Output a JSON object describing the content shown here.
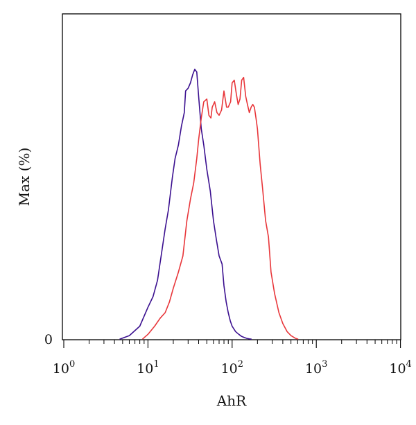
{
  "chart_data": {
    "type": "line",
    "xlabel": "AhR",
    "ylabel": "Max (%)",
    "x_scale": "log",
    "xlim": [
      1,
      30000
    ],
    "ylim": [
      0,
      100
    ],
    "x_ticks": [
      {
        "value": 1,
        "base": "10",
        "exp": "0"
      },
      {
        "value": 10,
        "base": "10",
        "exp": "1"
      },
      {
        "value": 100,
        "base": "10",
        "exp": "2"
      },
      {
        "value": 1000,
        "base": "10",
        "exp": "3"
      },
      {
        "value": 10000,
        "base": "10",
        "exp": "4"
      }
    ],
    "y_ticks": [
      {
        "value": 0,
        "label": "0"
      }
    ],
    "grid": false,
    "series": [
      {
        "color": "#3a0f8f",
        "x": [
          4.6,
          6,
          8,
          10,
          11.5,
          13,
          14.5,
          16,
          17.5,
          19.5,
          21,
          23,
          25,
          27,
          28,
          30,
          32,
          34,
          36,
          38,
          40,
          43,
          46,
          50,
          55,
          60,
          65,
          70,
          76,
          80,
          85,
          90,
          95,
          100,
          110,
          120,
          130,
          140,
          150,
          160,
          170
        ],
        "y": [
          0.2,
          1.5,
          5,
          12,
          16,
          22,
          32,
          41,
          48,
          60,
          67,
          72,
          79,
          84,
          92,
          93,
          95,
          98,
          100,
          99,
          90,
          78,
          72,
          63,
          55,
          44,
          37,
          31,
          28,
          20,
          14,
          10,
          7,
          5,
          3,
          2,
          1.2,
          0.8,
          0.5,
          0.3,
          0.2
        ]
      },
      {
        "color": "#e8363a",
        "x": [
          8.6,
          10,
          12,
          14,
          16,
          18,
          20,
          23,
          26,
          29,
          32,
          35,
          38,
          40,
          43,
          46,
          50,
          53,
          56,
          58,
          62,
          66,
          70,
          75,
          80,
          86,
          90,
          96,
          100,
          106,
          112,
          118,
          124,
          130,
          137,
          145,
          152,
          160,
          168,
          176,
          184,
          192,
          200,
          215,
          230,
          250,
          270,
          290,
          320,
          360,
          400,
          450,
          500,
          560,
          610
        ],
        "y": [
          0.2,
          2,
          5,
          8,
          10,
          14,
          19,
          25,
          31,
          44,
          52,
          58,
          67,
          74,
          82,
          88,
          89,
          83,
          82,
          86,
          88,
          84,
          83,
          85,
          92,
          86,
          86,
          88,
          95,
          96,
          91,
          87,
          89,
          96,
          97,
          90,
          87,
          84,
          86,
          87,
          86,
          82,
          78,
          65,
          56,
          44,
          38,
          25,
          17,
          10,
          6,
          3,
          1.5,
          0.6,
          0.2
        ]
      }
    ]
  }
}
